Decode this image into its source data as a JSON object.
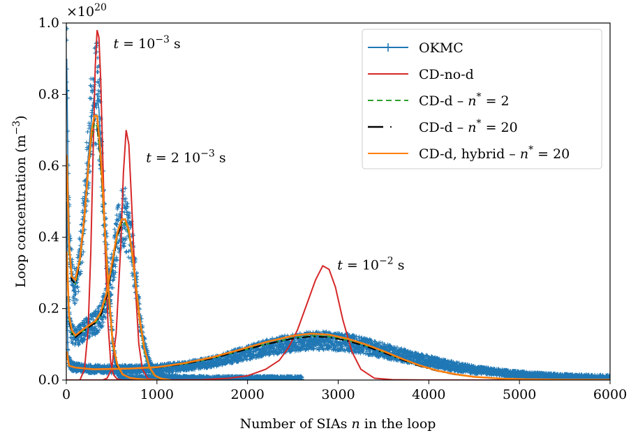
{
  "chart_data": {
    "type": "line",
    "xlabel_prefix": "Number of SIAs ",
    "xlabel_var": "n",
    "xlabel_suffix": " in the loop",
    "ylabel": "Loop concentration (m",
    "ylabel_sup": "−3",
    "ylabel_end": ")",
    "y_multiplier_base": "×10",
    "y_multiplier_exp": "20",
    "xlim": [
      0,
      6000
    ],
    "ylim": [
      0,
      1.0
    ],
    "xticks": [
      0,
      1000,
      2000,
      3000,
      4000,
      5000,
      6000
    ],
    "yticks": [
      0.0,
      0.2,
      0.4,
      0.6,
      0.8,
      1.0
    ],
    "xtick_labels": [
      "0",
      "1000",
      "2000",
      "3000",
      "4000",
      "5000",
      "6000"
    ],
    "ytick_labels": [
      "0.0",
      "0.2",
      "0.4",
      "0.6",
      "0.8",
      "1.0"
    ],
    "legend_position": "top-right",
    "legend": [
      {
        "label": "OKMC",
        "color": "#1f77b4",
        "style": "solid-plus"
      },
      {
        "label": "CD-no-d",
        "color": "#d62728",
        "style": "solid"
      },
      {
        "label": "CD-d – n* = 2",
        "color": "#2ca02c",
        "style": "dashed"
      },
      {
        "label": "CD-d – n* = 20",
        "color": "#000000",
        "style": "dashdot"
      },
      {
        "label": "CD-d, hybrid – n* = 20",
        "color": "#ff7f0e",
        "style": "solid"
      }
    ],
    "annotations": [
      {
        "text_t": "t",
        "text_mid": " = 10",
        "text_sup": "−3",
        "text_end": " s",
        "x": 520,
        "y": 0.93
      },
      {
        "text_t": "t",
        "text_mid": " = 2 10",
        "text_sup": "−3",
        "text_end": " s",
        "x": 880,
        "y": 0.61
      },
      {
        "text_t": "t",
        "text_mid": " = 10",
        "text_sup": "−2",
        "text_end": " s",
        "x": 2990,
        "y": 0.31
      }
    ],
    "series": [
      {
        "key": "okmc",
        "color": "#1f77b4",
        "style": "solid-plus",
        "curves": [
          {
            "x": [
              5,
              20,
              40,
              80,
              120,
              160,
              200,
              240,
              280,
              310,
              340,
              360,
              380,
              400,
              430,
              460,
              490,
              520,
              550,
              580,
              620,
              680,
              800,
              1000,
              1200,
              1400
            ],
            "y": [
              0.9,
              0.55,
              0.35,
              0.26,
              0.28,
              0.36,
              0.48,
              0.62,
              0.74,
              0.8,
              0.8,
              0.76,
              0.66,
              0.55,
              0.42,
              0.3,
              0.18,
              0.09,
              0.04,
              0.015,
              0.008,
              0.006,
              0.005,
              0.004,
              0.003,
              0.002
            ]
          },
          {
            "x": [
              5,
              20,
              50,
              100,
              150,
              200,
              260,
              320,
              380,
              440,
              500,
              560,
              610,
              650,
              690,
              730,
              770,
              810,
              850,
              900,
              950,
              1000,
              1100,
              1300,
              1600,
              2000,
              2600
            ],
            "y": [
              0.5,
              0.22,
              0.14,
              0.12,
              0.13,
              0.14,
              0.15,
              0.16,
              0.18,
              0.22,
              0.3,
              0.4,
              0.45,
              0.45,
              0.42,
              0.36,
              0.27,
              0.18,
              0.11,
              0.06,
              0.03,
              0.015,
              0.008,
              0.005,
              0.004,
              0.004,
              0.004
            ]
          },
          {
            "x": [
              5,
              20,
              50,
              100,
              200,
              400,
              700,
              1000,
              1300,
              1600,
              1900,
              2200,
              2500,
              2700,
              2900,
              3100,
              3300,
              3500,
              3700,
              3900,
              4100,
              4300,
              4500,
              4800,
              5100,
              5400,
              5700,
              6000
            ],
            "y": [
              0.22,
              0.06,
              0.04,
              0.035,
              0.032,
              0.03,
              0.03,
              0.032,
              0.038,
              0.05,
              0.07,
              0.09,
              0.105,
              0.11,
              0.11,
              0.105,
              0.095,
              0.082,
              0.07,
              0.058,
              0.047,
              0.037,
              0.029,
              0.02,
              0.014,
              0.01,
              0.008,
              0.007
            ]
          }
        ]
      },
      {
        "key": "cd-no-d",
        "color": "#d62728",
        "style": "solid",
        "curves": [
          {
            "x": [
              0,
              150,
              200,
              240,
              270,
              300,
              320,
              340,
              360,
              380,
              400,
              430,
              460,
              490,
              520,
              560,
              620,
              700,
              900
            ],
            "y": [
              0,
              0,
              0.03,
              0.14,
              0.36,
              0.68,
              0.88,
              0.98,
              0.96,
              0.84,
              0.65,
              0.36,
              0.16,
              0.05,
              0.015,
              0.003,
              0,
              0,
              0
            ]
          },
          {
            "x": [
              0,
              400,
              450,
              500,
              550,
              600,
              630,
              660,
              690,
              720,
              760,
              800,
              840,
              900,
              1000
            ],
            "y": [
              0,
              0,
              0.005,
              0.03,
              0.13,
              0.37,
              0.58,
              0.7,
              0.66,
              0.5,
              0.27,
              0.1,
              0.03,
              0.004,
              0
            ]
          },
          {
            "x": [
              0,
              500,
              1000,
              1500,
              1800,
              2000,
              2200,
              2350,
              2450,
              2550,
              2650,
              2750,
              2830,
              2900,
              2970,
              3050,
              3150,
              3250,
              3400,
              3600,
              4000,
              6000
            ],
            "y": [
              0,
              0,
              0,
              0.001,
              0.005,
              0.012,
              0.03,
              0.055,
              0.09,
              0.14,
              0.21,
              0.28,
              0.32,
              0.31,
              0.26,
              0.17,
              0.08,
              0.03,
              0.005,
              0.001,
              0,
              0
            ]
          }
        ]
      },
      {
        "key": "cd-d-2",
        "color": "#2ca02c",
        "style": "dashed",
        "curves": [
          {
            "x": [
              5,
              30,
              60,
              100,
              150,
              200,
              240,
              280,
              310,
              340,
              370,
              400,
              430,
              470,
              510,
              560,
              620,
              700,
              800,
              900,
              1000
            ],
            "y": [
              0.6,
              0.36,
              0.28,
              0.27,
              0.33,
              0.45,
              0.58,
              0.68,
              0.72,
              0.71,
              0.63,
              0.52,
              0.38,
              0.22,
              0.1,
              0.04,
              0.015,
              0.006,
              0.003,
              0.001,
              0
            ]
          },
          {
            "x": [
              5,
              30,
              60,
              100,
              150,
              200,
              260,
              320,
              380,
              440,
              500,
              560,
              610,
              650,
              690,
              730,
              770,
              810,
              860,
              920,
              980,
              1050,
              1150
            ],
            "y": [
              0.35,
              0.17,
              0.13,
              0.12,
              0.13,
              0.14,
              0.15,
              0.16,
              0.18,
              0.23,
              0.31,
              0.4,
              0.44,
              0.44,
              0.41,
              0.34,
              0.25,
              0.16,
              0.08,
              0.03,
              0.01,
              0.003,
              0
            ]
          },
          {
            "x": [
              5,
              30,
              100,
              300,
              700,
              1000,
              1300,
              1600,
              1900,
              2200,
              2500,
              2700,
              2900,
              3100,
              3300,
              3500,
              3700,
              3900,
              4100,
              4300,
              4500,
              4800,
              5100,
              5500,
              6000
            ],
            "y": [
              0.08,
              0.04,
              0.035,
              0.03,
              0.032,
              0.035,
              0.045,
              0.06,
              0.08,
              0.1,
              0.118,
              0.124,
              0.122,
              0.112,
              0.097,
              0.078,
              0.058,
              0.04,
              0.026,
              0.015,
              0.009,
              0.004,
              0.002,
              0.001,
              0.0005
            ]
          }
        ]
      },
      {
        "key": "cd-d-20",
        "color": "#000000",
        "style": "dashdot",
        "curves": [
          {
            "x": [
              5,
              30,
              60,
              100,
              150,
              200,
              240,
              280,
              310,
              340,
              370,
              400,
              430,
              470,
              510,
              560,
              620,
              700,
              800,
              900,
              1000
            ],
            "y": [
              0.62,
              0.37,
              0.28,
              0.27,
              0.33,
              0.45,
              0.58,
              0.69,
              0.73,
              0.72,
              0.64,
              0.53,
              0.39,
              0.23,
              0.11,
              0.04,
              0.015,
              0.006,
              0.003,
              0.001,
              0
            ]
          },
          {
            "x": [
              5,
              30,
              60,
              100,
              150,
              200,
              260,
              320,
              380,
              440,
              500,
              560,
              610,
              650,
              690,
              730,
              770,
              810,
              860,
              920,
              980,
              1050,
              1150
            ],
            "y": [
              0.35,
              0.17,
              0.13,
              0.12,
              0.13,
              0.14,
              0.15,
              0.16,
              0.18,
              0.23,
              0.31,
              0.4,
              0.44,
              0.45,
              0.42,
              0.35,
              0.26,
              0.17,
              0.09,
              0.035,
              0.012,
              0.004,
              0
            ]
          },
          {
            "x": [
              5,
              30,
              100,
              300,
              700,
              1000,
              1300,
              1600,
              1900,
              2200,
              2500,
              2700,
              2900,
              3100,
              3300,
              3500,
              3700,
              3900,
              4100,
              4300,
              4500,
              4800,
              5100,
              5500,
              6000
            ],
            "y": [
              0.08,
              0.04,
              0.035,
              0.03,
              0.032,
              0.035,
              0.045,
              0.06,
              0.08,
              0.1,
              0.116,
              0.122,
              0.12,
              0.11,
              0.095,
              0.077,
              0.057,
              0.039,
              0.025,
              0.015,
              0.009,
              0.004,
              0.002,
              0.001,
              0.0005
            ]
          }
        ]
      },
      {
        "key": "cd-d-hybrid-20",
        "color": "#ff7f0e",
        "style": "solid",
        "curves": [
          {
            "x": [
              5,
              30,
              60,
              100,
              150,
              200,
              240,
              280,
              310,
              340,
              370,
              400,
              430,
              470,
              510,
              560,
              620,
              700,
              800,
              900,
              1000
            ],
            "y": [
              0.63,
              0.38,
              0.29,
              0.28,
              0.34,
              0.46,
              0.59,
              0.7,
              0.74,
              0.74,
              0.66,
              0.55,
              0.4,
              0.24,
              0.11,
              0.045,
              0.016,
              0.006,
              0.003,
              0.001,
              0
            ]
          },
          {
            "x": [
              5,
              30,
              60,
              100,
              150,
              200,
              260,
              320,
              380,
              440,
              500,
              560,
              610,
              650,
              690,
              730,
              770,
              810,
              860,
              920,
              980,
              1050,
              1150
            ],
            "y": [
              0.36,
              0.18,
              0.14,
              0.125,
              0.135,
              0.145,
              0.155,
              0.165,
              0.19,
              0.24,
              0.32,
              0.41,
              0.45,
              0.45,
              0.42,
              0.35,
              0.26,
              0.17,
              0.09,
              0.035,
              0.012,
              0.004,
              0
            ]
          },
          {
            "x": [
              5,
              30,
              100,
              300,
              700,
              1000,
              1300,
              1600,
              1900,
              2200,
              2500,
              2700,
              2900,
              3100,
              3300,
              3500,
              3700,
              3900,
              4100,
              4300,
              4500,
              4800,
              5100,
              5500,
              6000
            ],
            "y": [
              0.08,
              0.04,
              0.035,
              0.03,
              0.032,
              0.036,
              0.047,
              0.063,
              0.084,
              0.106,
              0.124,
              0.13,
              0.127,
              0.116,
              0.1,
              0.081,
              0.06,
              0.041,
              0.026,
              0.016,
              0.009,
              0.004,
              0.002,
              0.001,
              0.0005
            ]
          }
        ]
      }
    ]
  }
}
